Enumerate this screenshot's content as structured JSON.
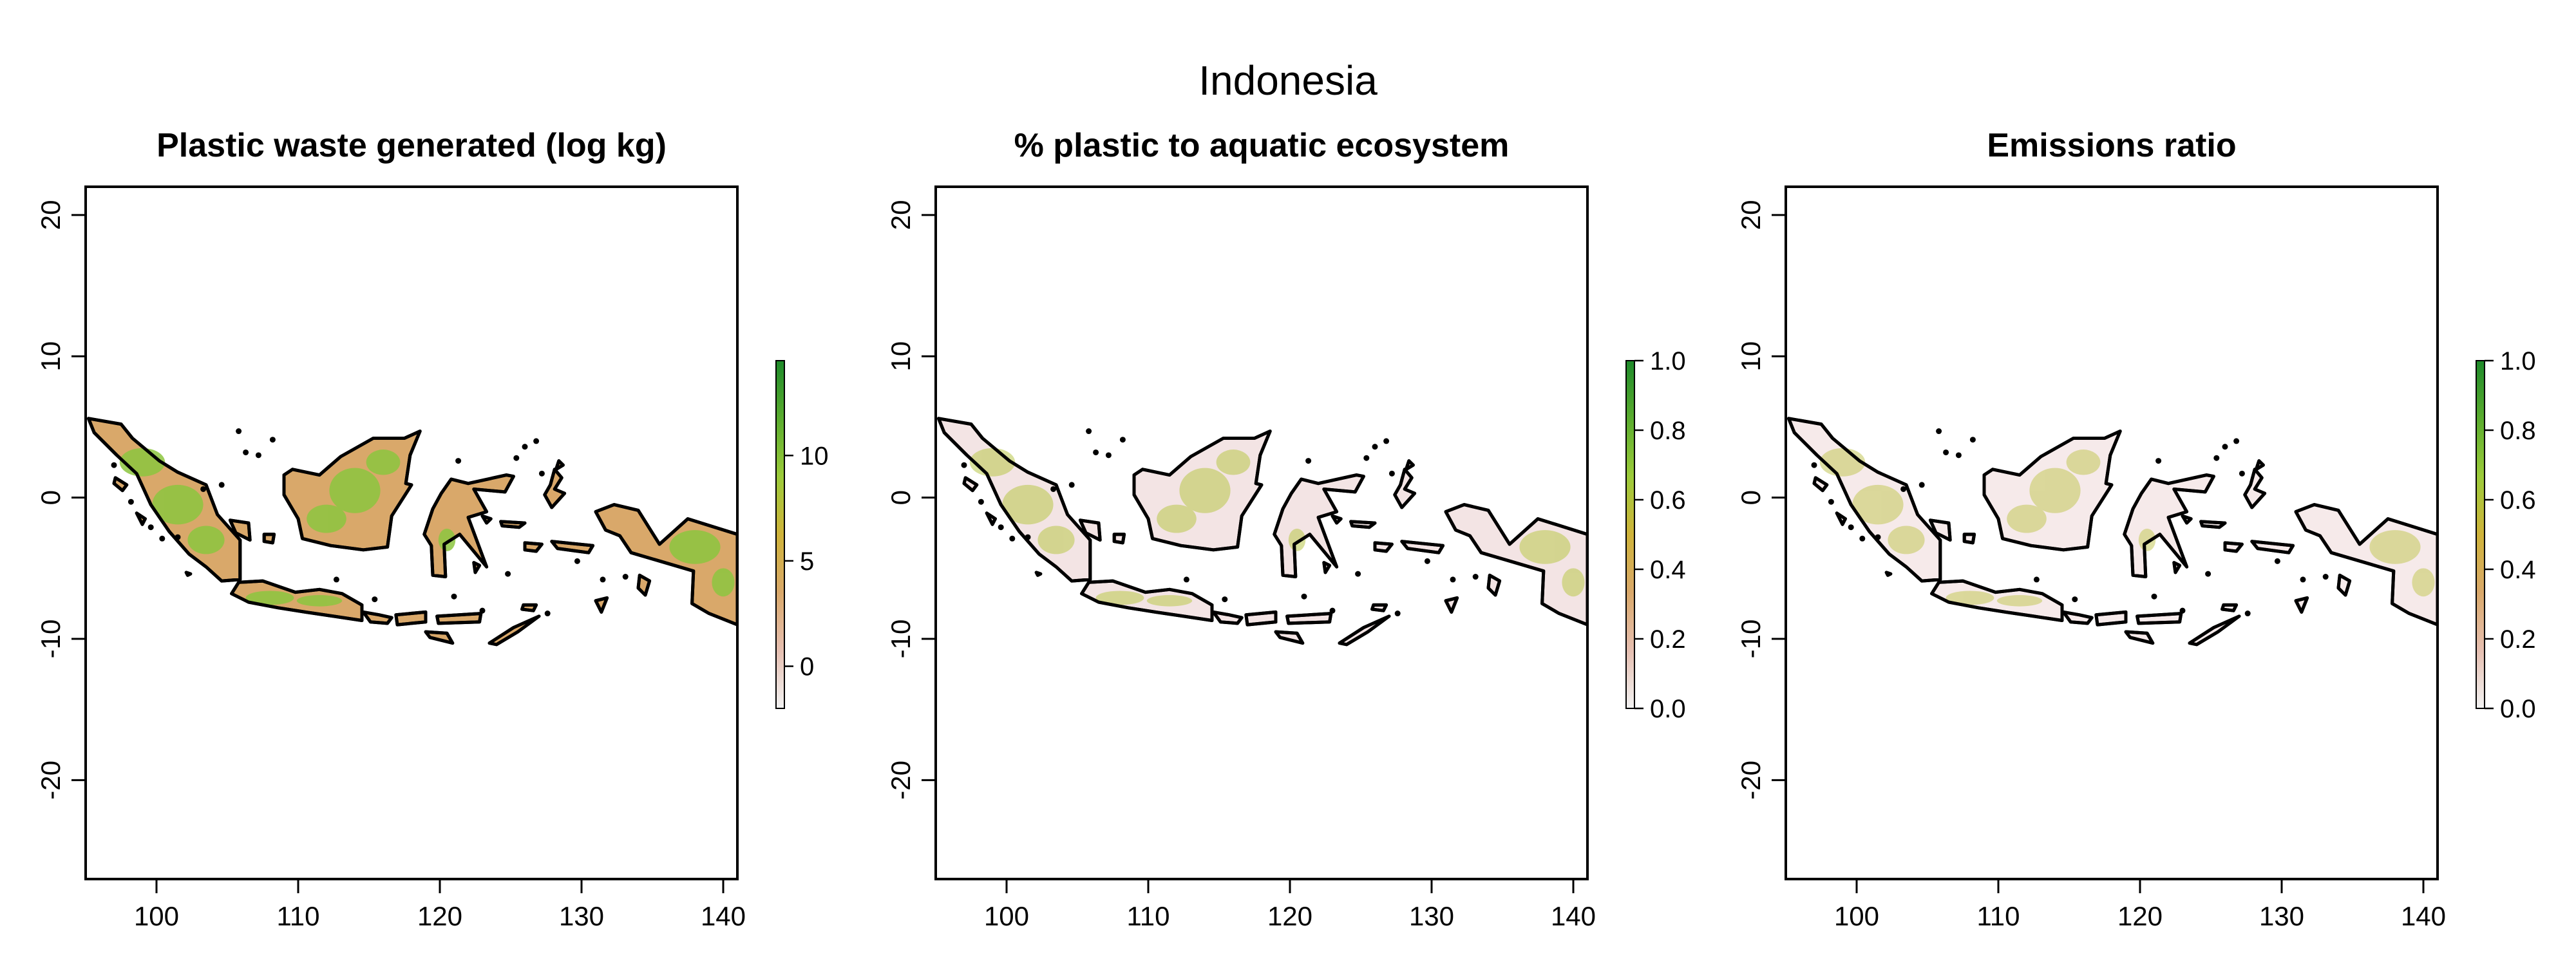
{
  "title": "Indonesia",
  "axes": {
    "x_ticks": [
      "100",
      "110",
      "120",
      "130",
      "140"
    ],
    "y_ticks": [
      "20",
      "10",
      "0",
      "-10",
      "-20"
    ],
    "xlim": [
      95,
      141
    ],
    "ylim": [
      -27,
      22
    ]
  },
  "panels": [
    {
      "title": "Plastic waste generated (log kg)",
      "legend_ticks": [
        "0",
        "5",
        "10"
      ],
      "legend_range": [
        -2,
        14.5
      ],
      "fill": "#d9a86a",
      "highlight": "#8cc63f"
    },
    {
      "title": "% plastic to aquatic ecosystem",
      "legend_ticks": [
        "0.0",
        "0.2",
        "0.4",
        "0.6",
        "0.8",
        "1.0"
      ],
      "legend_range": [
        0,
        1
      ],
      "fill": "#f3e4e4",
      "highlight": "#b9c84a"
    },
    {
      "title": "Emissions ratio",
      "legend_ticks": [
        "0.0",
        "0.2",
        "0.4",
        "0.6",
        "0.8",
        "1.0"
      ],
      "legend_range": [
        0,
        1
      ],
      "fill": "#f6eaea",
      "highlight": "#c4c85a"
    }
  ],
  "colors": {
    "scale": [
      "#f2f2f2",
      "#e6bfb1",
      "#d9a86a",
      "#cfb33a",
      "#9ccb3a",
      "#5aac2e",
      "#1e8a2a"
    ],
    "outline": "#000000"
  }
}
